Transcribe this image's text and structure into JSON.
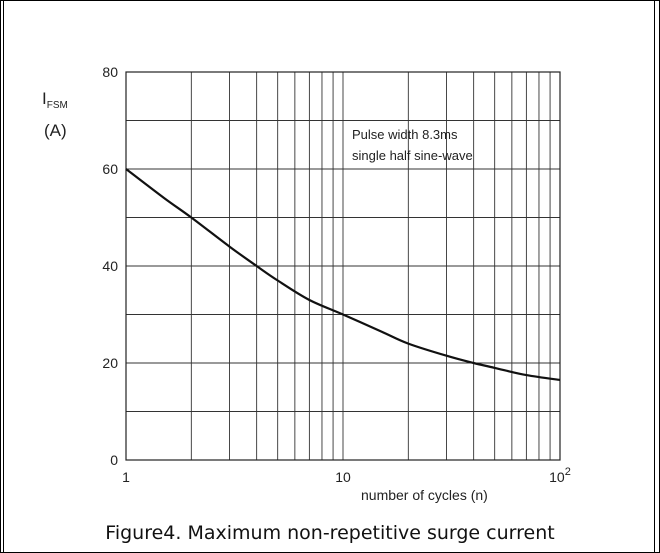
{
  "chart_data": {
    "type": "line",
    "ylabel_main": "I",
    "ylabel_sub": "FSM",
    "ylabel_unit": "(A)",
    "xlabel": "number of cycles (n)",
    "xscale": "log",
    "xlim": [
      1,
      100
    ],
    "ylim": [
      0,
      80
    ],
    "grid": true,
    "yticks": [
      "0",
      "20",
      "40",
      "60",
      "80"
    ],
    "xticks": [
      {
        "value": 1,
        "label": "1"
      },
      {
        "value": 10,
        "label": "10"
      },
      {
        "value": 100,
        "label": "10",
        "sup": "2"
      }
    ],
    "annotation": [
      "Pulse width 8.3ms",
      "single half sine-wave"
    ],
    "series": [
      {
        "x": [
          1,
          1.5,
          2,
          3,
          4,
          5,
          7,
          10,
          15,
          20,
          30,
          40,
          50,
          70,
          100
        ],
        "y": [
          60,
          54,
          50,
          44,
          40,
          37,
          33,
          30,
          26.5,
          24,
          21.5,
          20,
          19,
          17.5,
          16.5
        ]
      }
    ]
  },
  "caption": "Figure4.  Maximum non-repetitive surge current"
}
